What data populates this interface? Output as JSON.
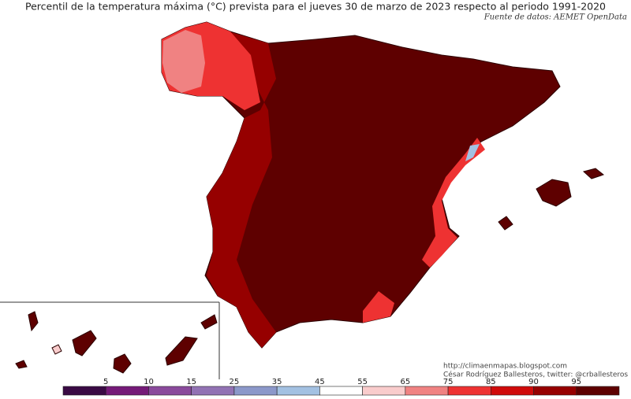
{
  "title": "Percentil de la temperatura máxima (°C) prevista para el jueves 30 de marzo de 2023 respecto al periodo 1991-2020",
  "source": "Fuente de datos: AEMET OpenData",
  "credits": {
    "url": "http://climaenmapas.blogspot.com",
    "author": "César Rodríguez Ballesteros, twitter: @crballesteros"
  },
  "colorbar": {
    "ticks": [
      5,
      10,
      15,
      25,
      35,
      45,
      55,
      65,
      75,
      85,
      90,
      95
    ],
    "colors": [
      "#3a0a44",
      "#751a78",
      "#8a4a9c",
      "#9272b4",
      "#8c98ca",
      "#a3c1e2",
      "#ffffff",
      "#f9cccc",
      "#f08282",
      "#ee3232",
      "#d00a0a",
      "#960000",
      "#5e0000"
    ]
  }
}
